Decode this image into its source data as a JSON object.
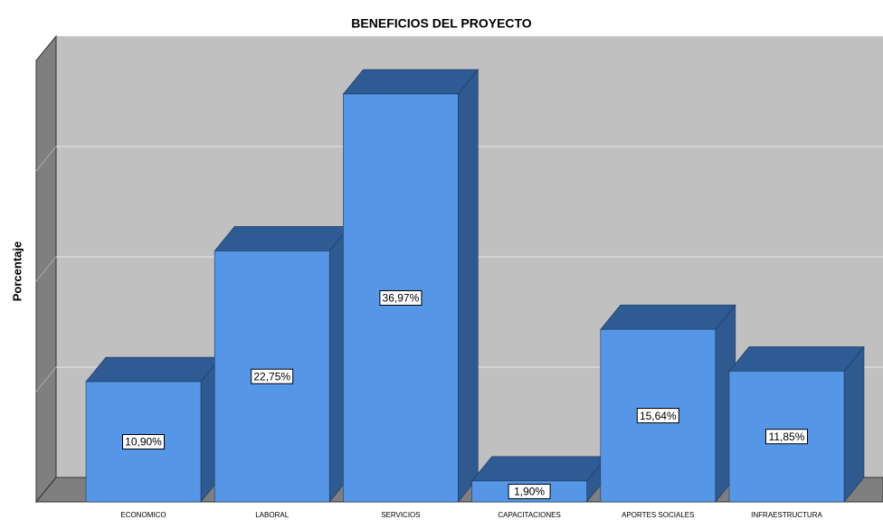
{
  "chart_data": {
    "type": "bar3d",
    "title": "BENEFICIOS DEL PROYECTO",
    "y_label": "Porcentaje",
    "categories": [
      "ECONOMICO",
      "LABORAL",
      "SERVICIOS",
      "CAPACITACIONES",
      "APORTES SOCIALES",
      "INFRAESTRUCTURA"
    ],
    "values": [
      10.9,
      22.75,
      36.97,
      1.9,
      15.64,
      11.85
    ],
    "value_labels": [
      "10,90%",
      "22,75%",
      "36,97%",
      "1,90%",
      "15,64%",
      "11,85%"
    ],
    "color": "#5596e6",
    "ylim": [
      0,
      40
    ],
    "yticks": [
      0,
      10,
      20,
      30,
      40
    ],
    "grid": true
  }
}
